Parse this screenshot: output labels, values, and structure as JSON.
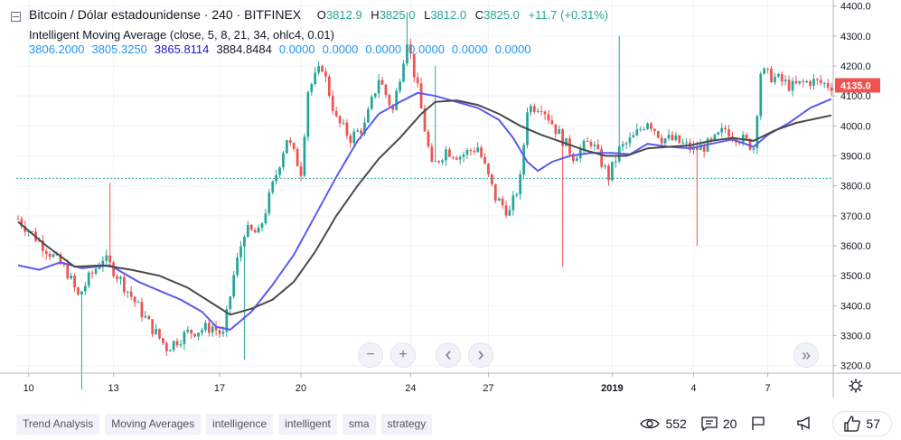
{
  "legend": {
    "title": "Bitcoin / Dólar estadounidense · 240 · BITFINEX",
    "o_label": "O",
    "o_value": "3812.9",
    "h_label": "H",
    "h_value": "3825.0",
    "l_label": "L",
    "l_value": "3812.0",
    "c_label": "C",
    "c_value": "3825.0",
    "change": "+11.7 (+0.31%)",
    "indicator_name": "Intelligent Moving Average (close, 5, 8, 21, 34, ohlc4, 0.01)",
    "indicator_values": [
      {
        "value": "3806.2000",
        "color": "#2196f3"
      },
      {
        "value": "3805.3250",
        "color": "#2196f3"
      },
      {
        "value": "3865.8114",
        "color": "#1a1acc"
      },
      {
        "value": "3884.8484",
        "color": "#131722"
      },
      {
        "value": "0.0000",
        "color": "#2196f3"
      },
      {
        "value": "0.0000",
        "color": "#2196f3"
      },
      {
        "value": "0.0000",
        "color": "#2196f3"
      },
      {
        "value": "0.0000",
        "color": "#2196f3"
      },
      {
        "value": "0.0000",
        "color": "#2196f3"
      },
      {
        "value": "0.0000",
        "color": "#2196f3"
      }
    ]
  },
  "nav": {
    "zoom_out": "−",
    "zoom_in": "+",
    "scroll_left": "‹",
    "scroll_right": "›",
    "go_to_end": "»"
  },
  "tags": [
    "Trend Analysis",
    "Moving Averages",
    "intelligence",
    "intelligent",
    "sma",
    "strategy"
  ],
  "stats": {
    "views": "552",
    "comments": "20",
    "likes": "57"
  },
  "chart_data": {
    "type": "candlestick",
    "price_axis": {
      "ticks": [
        4400,
        4300,
        4200,
        4100,
        4000,
        3900,
        3800,
        3700,
        3600,
        3500,
        3400,
        3300,
        3200
      ],
      "tick_labels": [
        "4400.0",
        "4300.0",
        "4200.0",
        "4100.0",
        "4000.0",
        "3900.0",
        "3800.0",
        "3700.0",
        "3600.0",
        "3500.0",
        "3400.0",
        "3300.0",
        "3200.0"
      ],
      "range": [
        3175,
        4420
      ],
      "last_price": 4135.0,
      "last_price_label": "4135.0",
      "last_price_color": "#ef5350",
      "reference_line": 3825
    },
    "time_axis": {
      "labels": [
        "10",
        "13",
        "17",
        "20",
        "24",
        "27",
        "2019",
        "4",
        "7"
      ],
      "label_index": [
        3,
        27,
        57,
        80,
        111,
        133,
        168,
        191,
        212
      ]
    },
    "candle_count": 231,
    "up_color": "#26a69a",
    "down_color": "#ef5350",
    "anchors": [
      [
        0,
        3690
      ],
      [
        8,
        3590
      ],
      [
        14,
        3510
      ],
      [
        17,
        3430
      ],
      [
        20,
        3490
      ],
      [
        24,
        3560
      ],
      [
        27,
        3520
      ],
      [
        31,
        3450
      ],
      [
        37,
        3340
      ],
      [
        42,
        3260
      ],
      [
        48,
        3310
      ],
      [
        55,
        3330
      ],
      [
        58,
        3300
      ],
      [
        61,
        3500
      ],
      [
        64,
        3650
      ],
      [
        68,
        3640
      ],
      [
        72,
        3800
      ],
      [
        76,
        3960
      ],
      [
        80,
        3850
      ],
      [
        82,
        4120
      ],
      [
        86,
        4200
      ],
      [
        90,
        4020
      ],
      [
        94,
        3960
      ],
      [
        98,
        4000
      ],
      [
        102,
        4160
      ],
      [
        106,
        4050
      ],
      [
        110,
        4290
      ],
      [
        113,
        4120
      ],
      [
        117,
        3860
      ],
      [
        121,
        3920
      ],
      [
        125,
        3900
      ],
      [
        130,
        3930
      ],
      [
        135,
        3760
      ],
      [
        139,
        3710
      ],
      [
        142,
        3820
      ],
      [
        144,
        4060
      ],
      [
        148,
        4070
      ],
      [
        152,
        3990
      ],
      [
        157,
        3900
      ],
      [
        162,
        3950
      ],
      [
        167,
        3830
      ],
      [
        170,
        3920
      ],
      [
        174,
        3960
      ],
      [
        178,
        4020
      ],
      [
        182,
        3960
      ],
      [
        186,
        3950
      ],
      [
        191,
        3920
      ],
      [
        196,
        3940
      ],
      [
        200,
        3990
      ],
      [
        204,
        3960
      ],
      [
        208,
        3930
      ],
      [
        210,
        4180
      ],
      [
        214,
        4160
      ],
      [
        219,
        4130
      ],
      [
        224,
        4150
      ],
      [
        230,
        4135
      ]
    ],
    "wicks": [
      {
        "i": 18,
        "low": 3120
      },
      {
        "i": 26,
        "high": 3810
      },
      {
        "i": 64,
        "low": 3220
      },
      {
        "i": 110,
        "high": 4380
      },
      {
        "i": 118,
        "high": 4200
      },
      {
        "i": 154,
        "low": 3530
      },
      {
        "i": 170,
        "high": 4300
      },
      {
        "i": 192,
        "low": 3600
      }
    ],
    "series": [
      {
        "name": "",
        "color": "#5b5bf0",
        "points": [
          [
            0,
            3535
          ],
          [
            6,
            3520
          ],
          [
            12,
            3545
          ],
          [
            18,
            3525
          ],
          [
            26,
            3535
          ],
          [
            34,
            3480
          ],
          [
            40,
            3450
          ],
          [
            46,
            3420
          ],
          [
            52,
            3380
          ],
          [
            56,
            3330
          ],
          [
            60,
            3320
          ],
          [
            66,
            3380
          ],
          [
            72,
            3470
          ],
          [
            78,
            3570
          ],
          [
            84,
            3700
          ],
          [
            90,
            3830
          ],
          [
            96,
            3950
          ],
          [
            102,
            4040
          ],
          [
            108,
            4080
          ],
          [
            113,
            4110
          ],
          [
            118,
            4100
          ],
          [
            124,
            4080
          ],
          [
            130,
            4060
          ],
          [
            136,
            4020
          ],
          [
            140,
            3960
          ],
          [
            144,
            3880
          ],
          [
            147,
            3850
          ],
          [
            151,
            3880
          ],
          [
            156,
            3900
          ],
          [
            162,
            3910
          ],
          [
            168,
            3910
          ],
          [
            173,
            3905
          ],
          [
            178,
            3940
          ],
          [
            184,
            3930
          ],
          [
            190,
            3925
          ],
          [
            196,
            3940
          ],
          [
            202,
            3955
          ],
          [
            208,
            3930
          ],
          [
            212,
            3970
          ],
          [
            218,
            4010
          ],
          [
            224,
            4060
          ],
          [
            230,
            4090
          ]
        ]
      },
      {
        "name": "",
        "color": "#4a4a4a",
        "points": [
          [
            0,
            3680
          ],
          [
            8,
            3600
          ],
          [
            16,
            3530
          ],
          [
            24,
            3535
          ],
          [
            32,
            3520
          ],
          [
            40,
            3500
          ],
          [
            48,
            3460
          ],
          [
            56,
            3400
          ],
          [
            60,
            3370
          ],
          [
            66,
            3390
          ],
          [
            72,
            3420
          ],
          [
            78,
            3480
          ],
          [
            84,
            3580
          ],
          [
            90,
            3700
          ],
          [
            96,
            3800
          ],
          [
            102,
            3890
          ],
          [
            108,
            3960
          ],
          [
            114,
            4040
          ],
          [
            118,
            4080
          ],
          [
            124,
            4085
          ],
          [
            130,
            4070
          ],
          [
            136,
            4040
          ],
          [
            142,
            4000
          ],
          [
            148,
            3970
          ],
          [
            154,
            3945
          ],
          [
            160,
            3920
          ],
          [
            166,
            3900
          ],
          [
            172,
            3900
          ],
          [
            178,
            3925
          ],
          [
            184,
            3930
          ],
          [
            190,
            3935
          ],
          [
            196,
            3950
          ],
          [
            202,
            3960
          ],
          [
            208,
            3950
          ],
          [
            214,
            3985
          ],
          [
            220,
            4010
          ],
          [
            226,
            4025
          ],
          [
            230,
            4035
          ]
        ]
      }
    ]
  }
}
